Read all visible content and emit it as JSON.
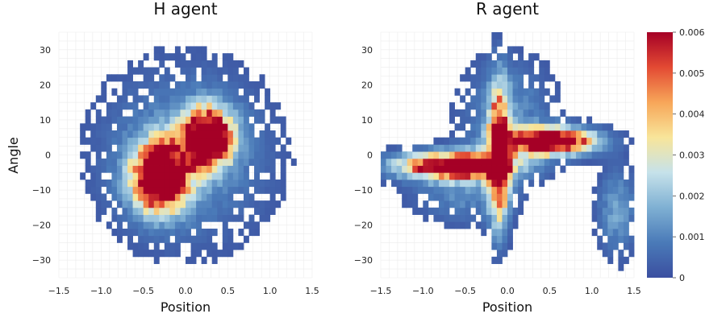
{
  "chart_data": [
    {
      "type": "heatmap",
      "title": "H agent",
      "xlabel": "Position",
      "ylabel": "Angle",
      "xlim": [
        -1.5,
        1.5
      ],
      "ylim": [
        -35,
        35
      ],
      "xticks": [
        "−1.5",
        "−1.0",
        "−0.5",
        "0.0",
        "0.5",
        "1.0",
        "1.5"
      ],
      "yticks": [
        "−30",
        "−20",
        "−10",
        "0",
        "10",
        "20",
        "30"
      ],
      "grid": true,
      "density_components": [
        {
          "x": 0.25,
          "y": 5,
          "sx": 0.2,
          "sy": 5.5,
          "weight": 0.009
        },
        {
          "x": -0.3,
          "y": -6,
          "sx": 0.22,
          "sy": 6.5,
          "weight": 0.009
        },
        {
          "x": 0.0,
          "y": 0,
          "sx": 0.65,
          "sy": 16,
          "weight": 0.0013
        }
      ]
    },
    {
      "type": "heatmap",
      "title": "R agent",
      "xlabel": "Position",
      "ylabel": "",
      "xlim": [
        -1.5,
        1.5
      ],
      "ylim": [
        -35,
        35
      ],
      "xticks": [
        "−1.5",
        "−1.0",
        "−0.5",
        "0.0",
        "0.5",
        "1.0",
        "1.5"
      ],
      "yticks": [
        "−30",
        "−20",
        "−10",
        "0",
        "10",
        "20",
        "30"
      ],
      "grid": true,
      "density_components": [
        {
          "x": 0.5,
          "y": 4,
          "sx": 0.35,
          "sy": 2.5,
          "weight": 0.009
        },
        {
          "x": -0.6,
          "y": -3,
          "sx": 0.45,
          "sy": 2.5,
          "weight": 0.008
        },
        {
          "x": -0.1,
          "y": 0,
          "sx": 0.08,
          "sy": 12,
          "weight": 0.008
        },
        {
          "x": 1.3,
          "y": -16,
          "sx": 0.15,
          "sy": 8,
          "weight": 0.0015
        },
        {
          "x": 0.0,
          "y": 12,
          "sx": 0.35,
          "sy": 10,
          "weight": 0.0012
        },
        {
          "x": -0.5,
          "y": -10,
          "sx": 0.4,
          "sy": 6,
          "weight": 0.0012
        }
      ]
    }
  ],
  "colorbar": {
    "min": 0,
    "max": 0.006,
    "ticks": [
      "0",
      "0.001",
      "0.002",
      "0.003",
      "0.004",
      "0.005",
      "0.006"
    ],
    "colors": [
      "#3b4fa0",
      "#4a7ab8",
      "#7fb0d3",
      "#c6e2ea",
      "#f8e59a",
      "#f7a659",
      "#e34a33",
      "#a50026"
    ]
  }
}
